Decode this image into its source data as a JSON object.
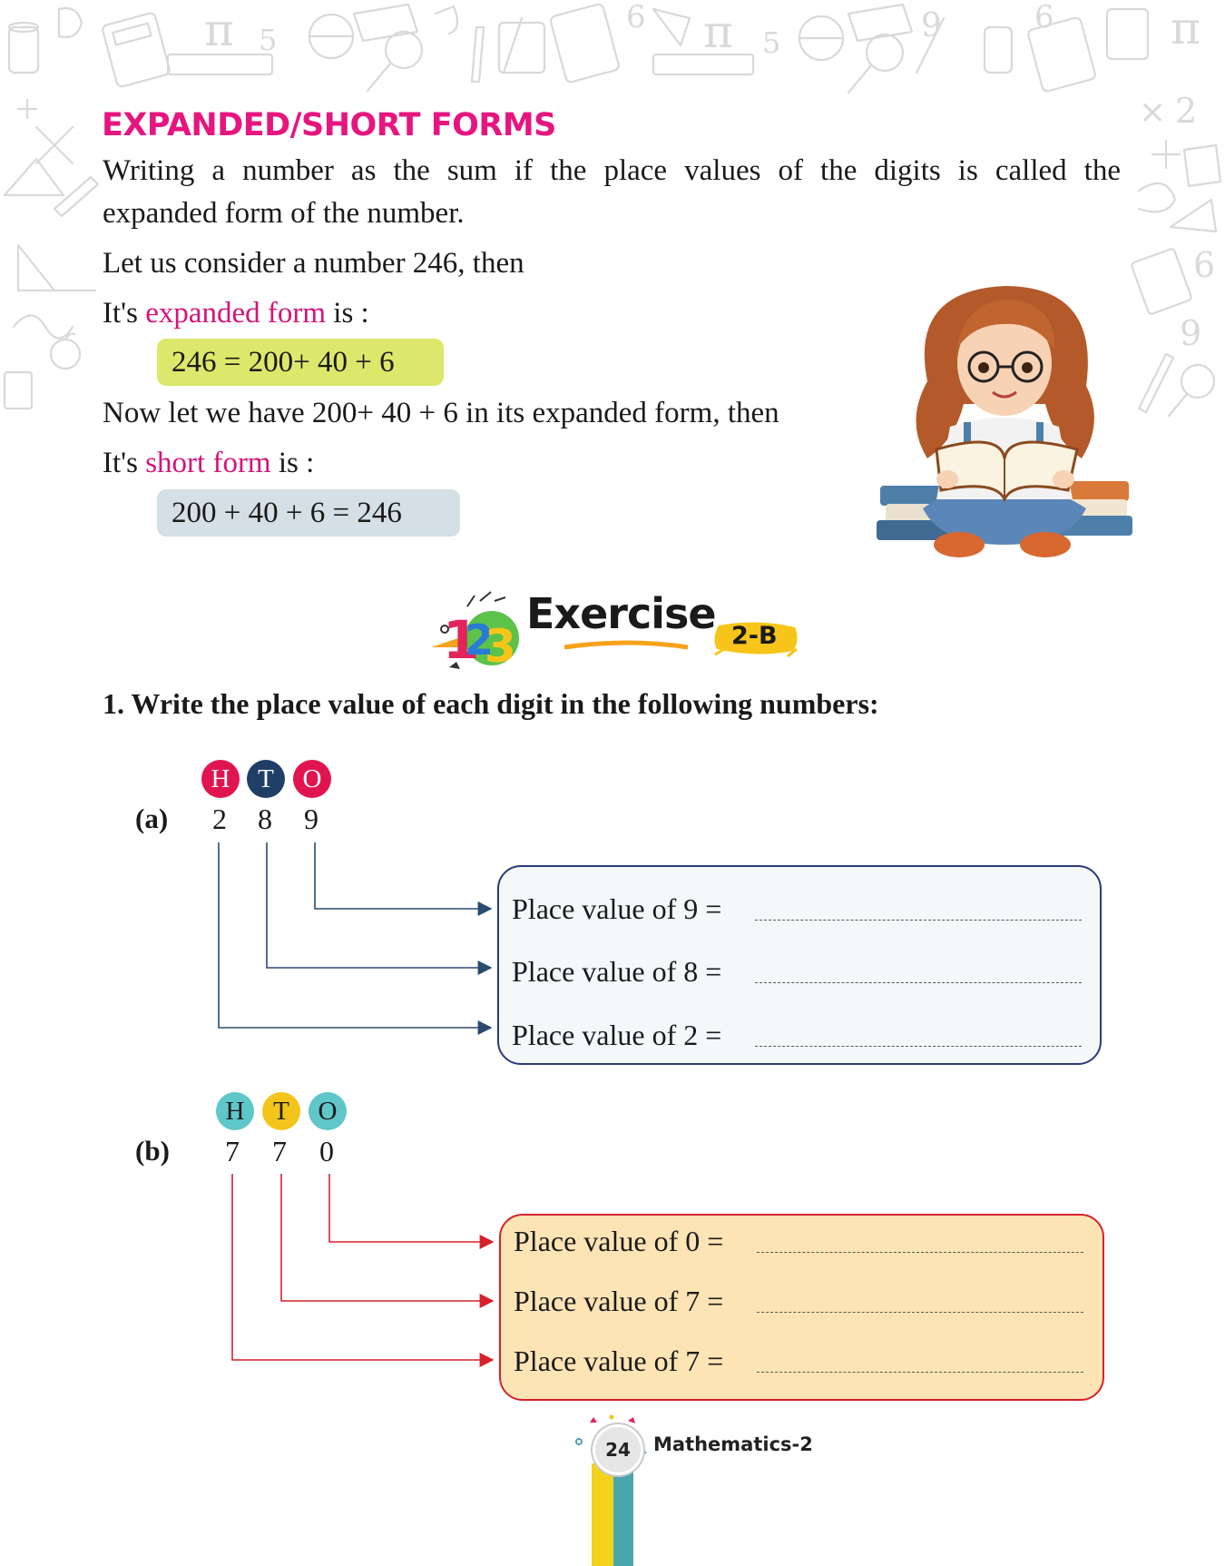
{
  "section": {
    "heading": "EXPANDED/SHORT FORMS",
    "paragraph_1": "Writing a number as the sum if the place values of the digits is called the",
    "paragraph_1b": "expanded form of the number.",
    "paragraph_2": "Let us consider a number 246, then",
    "expanded_prefix": "It's ",
    "expanded_term": "expanded form",
    "expanded_suffix": " is :",
    "expanded_equation": "246  = 200+ 40 + 6",
    "paragraph_3": "Now let we have 200+ 40 + 6 in its expanded form, then",
    "short_prefix": "It's ",
    "short_term": "short form",
    "short_suffix": " is :",
    "short_equation": "200 + 40 + 6  =  246"
  },
  "exercise": {
    "title": "Exercise",
    "badge": "2-B",
    "question": "1.  Write the place value of each digit in the following numbers:",
    "parts": [
      {
        "label": "(a)",
        "headers": [
          "H",
          "T",
          "O"
        ],
        "digits": [
          "2",
          "8",
          "9"
        ],
        "colors": {
          "H": "#e0154f",
          "T": "#1f3f66",
          "O": "#e0154f",
          "text": "#ffffff"
        },
        "rows": [
          "Place value of 9 =",
          "Place value of 8 =",
          "Place value of 2 ="
        ]
      },
      {
        "label": "(b)",
        "headers": [
          "H",
          "T",
          "O"
        ],
        "digits": [
          "7",
          "7",
          "0"
        ],
        "colors": {
          "H": "#5fc7c9",
          "T": "#f3c51a",
          "O": "#5fc7c9",
          "text": "#1a1a1a"
        },
        "rows": [
          "Place value of 0 =",
          "Place value of 7 =",
          "Place value of 7 ="
        ]
      }
    ]
  },
  "footer": {
    "page_number": "24",
    "book_title": "Mathematics-2"
  },
  "icons": [
    "calculator-icon",
    "pi-icon",
    "magnifier-icon",
    "pencil-icon",
    "ruler-icon",
    "globe-icon",
    "apple-icon",
    "reading-girl-illustration",
    "exercise-123-logo"
  ]
}
